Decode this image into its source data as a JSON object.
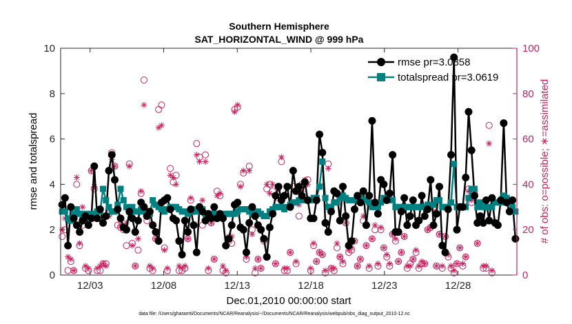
{
  "chart_data": {
    "type": "line",
    "title": "Southern Hemisphere",
    "subtitle": "SAT_HORIZONTAL_WIND @ 999 hPa",
    "xlabel": "Dec.01,2010 00:00:00 start",
    "ylabel": "rmse and totalspread",
    "ylabel_right": "# of obs: o=possible; ∗=assimilated",
    "footer": "data file: /Users/gharamti/Documents/NCAR/Reanalysis/~/Documents/NCAR/Reanalysis/webpub/obs_diag_output_2010-12.nc",
    "xlim": [
      1,
      32
    ],
    "ylim": [
      0,
      10
    ],
    "ylim_right": [
      0,
      100
    ],
    "x_ticks": [
      {
        "value": 3,
        "label": "12/03"
      },
      {
        "value": 8,
        "label": "12/08"
      },
      {
        "value": 13,
        "label": "12/13"
      },
      {
        "value": 18,
        "label": "12/18"
      },
      {
        "value": 23,
        "label": "12/23"
      },
      {
        "value": 28,
        "label": "12/28"
      }
    ],
    "y_ticks": [
      0,
      2,
      4,
      6,
      8,
      10
    ],
    "y_ticks_right": [
      0,
      20,
      40,
      60,
      80,
      100
    ],
    "legend_position": "top-right",
    "colors": {
      "rmse": "#000000",
      "spread": "#008080",
      "obs": "#cc1f5d",
      "axis": "#262626"
    },
    "series": [
      {
        "name": "rmse",
        "legend": "rmse pr=3.0858",
        "marker": "circle",
        "values": [
          3.1,
          3.4,
          1.3,
          3.0,
          2.5,
          2.2,
          1.9,
          2.4,
          2.6,
          2.2,
          2.5,
          4.8,
          2.5,
          2.9,
          2.3,
          2.6,
          4.6,
          5.3,
          4.2,
          2.9,
          2.5,
          2.1,
          2.0,
          2.8,
          2.5,
          1.9,
          2.4,
          3.2,
          3.0,
          2.6,
          2.8,
          2.2,
          1.9,
          1.5,
          3.2,
          3.3,
          3.4,
          2.9,
          2.5,
          2.4,
          1.5,
          0.9,
          2.4,
          1.9,
          2.9,
          2.2,
          1.0,
          3.0,
          2.8,
          2.4,
          2.7,
          2.5,
          3.0,
          2.5,
          2.7,
          2.5,
          1.3,
          1.6,
          2.2,
          3.1,
          3.2,
          2.1,
          2.0,
          1.0,
          2.3,
          3.0,
          2.6,
          2.2,
          2.0,
          1.6,
          0.8,
          2.1,
          2.7,
          3.5,
          3.9,
          3.3,
          3.5,
          3.9,
          3.0,
          4.6,
          3.7,
          3.9,
          3.5,
          4.1,
          3.3,
          2.5,
          2.5,
          3.3,
          6.2,
          5.4,
          2.3,
          1.9,
          2.8,
          3.7,
          3.6,
          2.4,
          3.9,
          2.6,
          1.3,
          1.5,
          2.9,
          3.5,
          3.2,
          3.7,
          2.2,
          3.5,
          6.8,
          3.2,
          2.7,
          4.2,
          4.0,
          3.3,
          3.6,
          5.3,
          1.9,
          1.9,
          2.8,
          3.4,
          2.2,
          2.6,
          3.3,
          2.2,
          2.4,
          3.5,
          2.6,
          2.9,
          4.2,
          2.2,
          2.7,
          3.9,
          1.3,
          1.0,
          2.9,
          5.3,
          9.6,
          2.0,
          3.0,
          3.0,
          4.3,
          7.2,
          5.5,
          3.5,
          2.3,
          2.6,
          2.3,
          3.3,
          2.4,
          3.4,
          2.3,
          2.2,
          3.3,
          6.7,
          3.2,
          2.8,
          3.3,
          1.6
        ]
      },
      {
        "name": "totalspread",
        "legend": "totalspread pr=3.0619",
        "marker": "square",
        "values": [
          2.8,
          2.8,
          2.5,
          2.4,
          2.7,
          2.9,
          2.7,
          2.6,
          2.7,
          2.6,
          2.7,
          2.7,
          2.8,
          2.8,
          3.8,
          3.3,
          3.0,
          2.8,
          2.8,
          3.1,
          3.8,
          3.3,
          3.0,
          2.8,
          3.0,
          2.8,
          2.8,
          2.9,
          2.8,
          2.8,
          2.7,
          3.3,
          3.1,
          3.0,
          2.9,
          2.8,
          2.9,
          3.0,
          3.0,
          3.0,
          2.9,
          2.8,
          2.8,
          2.7,
          2.8,
          2.8,
          2.9,
          2.8,
          2.9,
          2.7,
          2.7,
          2.7,
          2.7,
          2.7,
          2.6,
          2.6,
          2.7,
          2.7,
          2.7,
          2.7,
          2.8,
          2.9,
          2.9,
          2.9,
          2.8,
          2.7,
          2.8,
          2.8,
          2.7,
          2.6,
          2.6,
          2.8,
          2.9,
          3.0,
          3.0,
          3.0,
          2.9,
          3.0,
          3.1,
          3.2,
          3.2,
          3.3,
          3.4,
          3.3,
          3.3,
          3.3,
          3.4,
          3.4,
          3.9,
          5.0,
          3.4,
          3.0,
          3.0,
          3.2,
          3.2,
          3.4,
          3.5,
          3.4,
          3.3,
          3.3,
          3.3,
          3.4,
          3.4,
          3.3,
          3.3,
          3.2,
          3.0,
          3.0,
          3.0,
          3.2,
          3.4,
          3.3,
          3.3,
          3.3,
          3.0,
          3.0,
          3.0,
          3.0,
          3.0,
          3.0,
          3.0,
          3.0,
          3.0,
          3.0,
          3.0,
          3.1,
          3.1,
          3.1,
          3.3,
          3.3,
          3.0,
          3.0,
          3.0,
          3.2,
          4.9,
          3.0,
          3.0,
          3.0,
          3.0,
          3.4,
          3.8,
          3.8,
          3.0,
          3.2,
          3.0,
          3.0,
          3.0,
          3.0,
          3.2,
          3.2,
          3.2,
          3.5,
          3.4,
          3.3,
          3.0,
          2.8
        ]
      },
      {
        "name": "possible",
        "marker": "open-circle",
        "values": [
          17,
          20,
          2,
          6,
          2,
          40,
          13,
          22,
          3,
          2,
          46,
          38,
          2,
          2,
          5,
          5,
          27,
          54,
          48,
          22,
          21,
          20,
          13,
          49,
          14,
          4,
          11,
          36,
          86,
          24,
          3,
          2,
          16,
          73,
          75,
          12,
          2,
          47,
          41,
          44,
          2,
          2,
          3,
          16,
          33,
          28,
          58,
          52,
          22,
          53,
          2,
          23,
          7,
          37,
          35,
          2,
          1,
          15,
          14,
          73,
          74,
          40,
          45,
          7,
          48,
          20,
          1,
          7,
          3,
          15,
          38,
          40,
          37,
          5,
          34,
          50,
          2,
          2,
          10,
          39,
          5,
          26,
          40,
          40,
          42,
          2,
          13,
          6,
          10,
          9,
          1,
          49,
          3,
          2,
          12,
          8,
          5,
          23,
          10,
          11,
          15,
          4,
          7,
          24,
          13,
          3,
          16,
          20,
          4,
          20,
          12,
          8,
          4,
          18,
          15,
          6,
          10,
          17,
          3,
          5,
          7,
          10,
          3,
          5,
          5,
          20,
          21,
          30,
          4,
          18,
          3,
          17,
          8,
          3,
          1,
          5,
          12,
          4,
          8,
          38,
          32,
          36,
          14,
          25,
          3,
          3,
          66,
          1
        ]
      },
      {
        "name": "assimilated",
        "marker": "asterisk",
        "values": [
          20,
          25,
          8,
          7,
          2,
          43,
          14,
          30,
          4,
          3,
          46,
          39,
          3,
          4,
          5,
          4,
          26,
          51,
          48,
          29,
          22,
          21,
          23,
          48,
          13,
          4,
          16,
          37,
          75,
          28,
          4,
          3,
          16,
          65,
          66,
          11,
          3,
          44,
          43,
          40,
          4,
          3,
          4,
          16,
          34,
          29,
          53,
          50,
          33,
          50,
          3,
          23,
          7,
          35,
          36,
          4,
          2,
          17,
          17,
          72,
          75,
          39,
          46,
          8,
          46,
          18,
          3,
          7,
          3,
          16,
          40,
          36,
          40,
          5,
          38,
          52,
          3,
          3,
          10,
          37,
          6,
          31,
          37,
          42,
          40,
          3,
          14,
          6,
          10,
          9,
          2,
          47,
          3,
          3,
          14,
          8,
          6,
          23,
          11,
          12,
          15,
          4,
          7,
          26,
          13,
          4,
          16,
          22,
          5,
          21,
          12,
          9,
          5,
          18,
          16,
          6,
          10,
          17,
          4,
          4,
          7,
          11,
          4,
          6,
          5,
          20,
          21,
          32,
          4,
          18,
          4,
          17,
          9,
          4,
          2,
          5,
          12,
          5,
          8,
          37,
          33,
          37,
          14,
          25,
          4,
          4,
          58,
          2
        ]
      }
    ]
  }
}
